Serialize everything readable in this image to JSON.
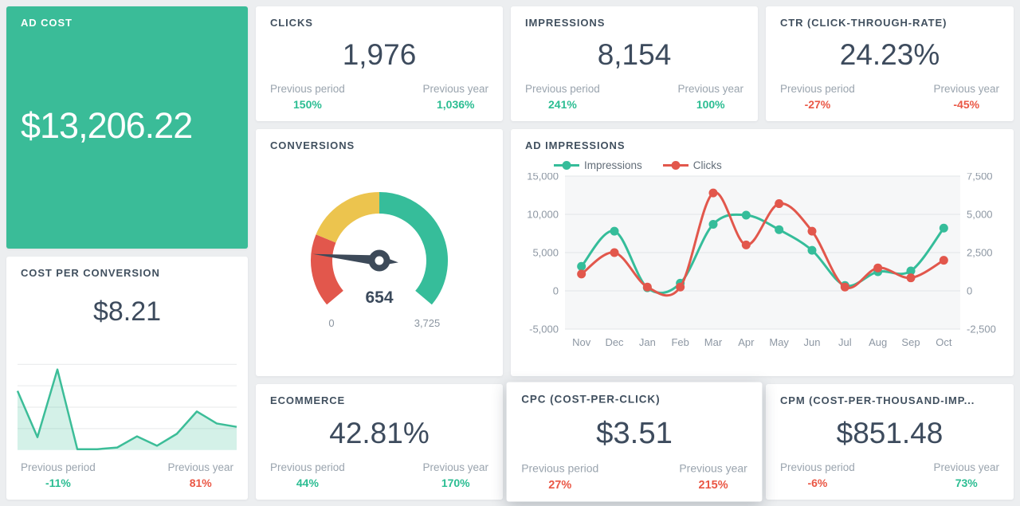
{
  "theme": {
    "background": "#eceef0",
    "card_background": "#ffffff",
    "accent_green": "#3abc98",
    "positive_green": "#2bbd92",
    "negative_red": "#ea5745",
    "title_color": "#41505f",
    "value_color": "#3d4b5d",
    "muted_label_color": "#9aa4ae"
  },
  "labels": {
    "prev_period": "Previous period",
    "prev_year": "Previous year"
  },
  "cards": {
    "ad_cost": {
      "title": "AD COST",
      "value": "$13,206.22"
    },
    "clicks": {
      "title": "CLICKS",
      "value": "1,976",
      "prev_period": "150%",
      "prev_period_trend": "positive",
      "prev_year": "1,036%",
      "prev_year_trend": "positive"
    },
    "impressions": {
      "title": "IMPRESSIONS",
      "value": "8,154",
      "prev_period": "241%",
      "prev_period_trend": "positive",
      "prev_year": "100%",
      "prev_year_trend": "positive"
    },
    "ctr": {
      "title": "CTR (CLICK-THROUGH-RATE)",
      "value": "24.23%",
      "prev_period": "-27%",
      "prev_period_trend": "negative",
      "prev_year": "-45%",
      "prev_year_trend": "negative"
    },
    "cost_per_conversion": {
      "title": "COST PER CONVERSION",
      "value": "$8.21",
      "prev_period": "-11%",
      "prev_period_trend": "positive",
      "prev_year": "81%",
      "prev_year_trend": "negative"
    },
    "conversions": {
      "title": "CONVERSIONS"
    },
    "ad_impressions": {
      "title": "AD IMPRESSIONS"
    },
    "ecommerce": {
      "title": "ECOMMERCE",
      "value": "42.81%",
      "prev_period": "44%",
      "prev_period_trend": "positive",
      "prev_year": "170%",
      "prev_year_trend": "positive"
    },
    "cpc": {
      "title": "CPC (COST-PER-CLICK)",
      "value": "$3.51",
      "prev_period": "27%",
      "prev_period_trend": "negative",
      "prev_year": "215%",
      "prev_year_trend": "negative"
    },
    "cpm": {
      "title": "CPM (COST-PER-THOUSAND-IMP...",
      "value": "$851.48",
      "prev_period": "-6%",
      "prev_period_trend": "negative",
      "prev_year": "73%",
      "prev_year_trend": "positive"
    }
  },
  "chart_data": [
    {
      "id": "conversions_gauge",
      "type": "gauge",
      "title": "CONVERSIONS",
      "value": 654,
      "min": 0,
      "max": 3725,
      "value_label": "654",
      "min_label": "0",
      "max_label": "3,725",
      "start_angle": 220,
      "end_angle": -40,
      "segments": [
        {
          "name": "red-zone",
          "to": 0.24,
          "color": "#e2574c"
        },
        {
          "name": "yellow-zone",
          "to": 0.5,
          "color": "#ecc44e"
        },
        {
          "name": "green-zone",
          "to": 1.0,
          "color": "#36bd9a"
        }
      ],
      "needle_color": "#3d4a59"
    },
    {
      "id": "ad_impressions_line",
      "type": "line",
      "title": "AD IMPRESSIONS",
      "categories": [
        "Nov",
        "Dec",
        "Jan",
        "Feb",
        "Mar",
        "Apr",
        "May",
        "Jun",
        "Jul",
        "Aug",
        "Sep",
        "Oct"
      ],
      "series": [
        {
          "name": "Impressions",
          "axis": "left",
          "color": "#35bd9a",
          "values": [
            3200,
            7800,
            400,
            1000,
            8700,
            9900,
            8000,
            5300,
            700,
            2500,
            2600,
            8200
          ]
        },
        {
          "name": "Clicks",
          "axis": "right",
          "color": "#e2574c",
          "values": [
            1100,
            2500,
            250,
            250,
            6400,
            3000,
            5700,
            3900,
            250,
            1500,
            850,
            2000
          ]
        }
      ],
      "left_axis": {
        "min": -5000,
        "max": 15000,
        "tick_values": [
          15000,
          10000,
          5000,
          0,
          -5000
        ],
        "tick_labels": [
          "15,000",
          "10,000",
          "5,000",
          "0",
          "-5,000"
        ]
      },
      "right_axis": {
        "min": -2500,
        "max": 7500,
        "tick_values": [
          7500,
          5000,
          2500,
          0,
          -2500
        ],
        "tick_labels": [
          "7,500",
          "5,000",
          "2,500",
          "0",
          "-2,500"
        ]
      },
      "legend_position": "top",
      "grid": true,
      "plot_background": "#f6f7f8",
      "gridline_color": "#e2e4e7",
      "axis_label_color": "#8d97a3"
    },
    {
      "id": "cost_per_conversion_spark",
      "type": "area",
      "title": "COST PER CONVERSION trend",
      "values_normalized": [
        0.69,
        0.15,
        0.94,
        0.01,
        0.01,
        0.03,
        0.16,
        0.05,
        0.19,
        0.45,
        0.31,
        0.27
      ],
      "color": "#3cbd98",
      "fill_opacity": 0.22,
      "gridline_color": "#e7e9ea",
      "grid": true
    }
  ]
}
